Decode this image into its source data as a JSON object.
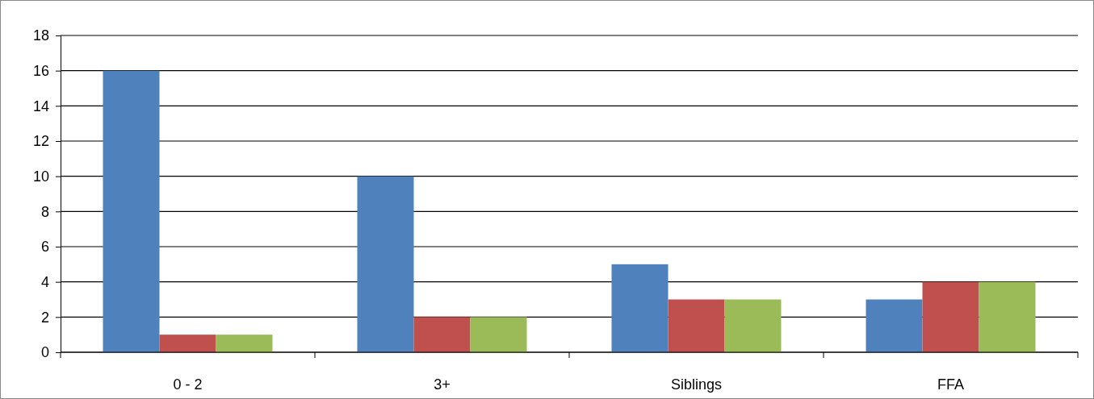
{
  "chart_data": {
    "type": "bar",
    "categories": [
      "0 - 2",
      "3+",
      "Siblings",
      "FFA"
    ],
    "series": [
      {
        "color": "#4f81bd",
        "values": [
          16,
          10,
          5,
          3
        ]
      },
      {
        "color": "#c0504d",
        "values": [
          1,
          2,
          3,
          4
        ]
      },
      {
        "color": "#9bbb59",
        "values": [
          1,
          2,
          3,
          4
        ]
      }
    ],
    "ylim": [
      0,
      18
    ],
    "yticks": [
      0,
      2,
      4,
      6,
      8,
      10,
      12,
      14,
      16,
      18
    ],
    "grid": "y"
  }
}
